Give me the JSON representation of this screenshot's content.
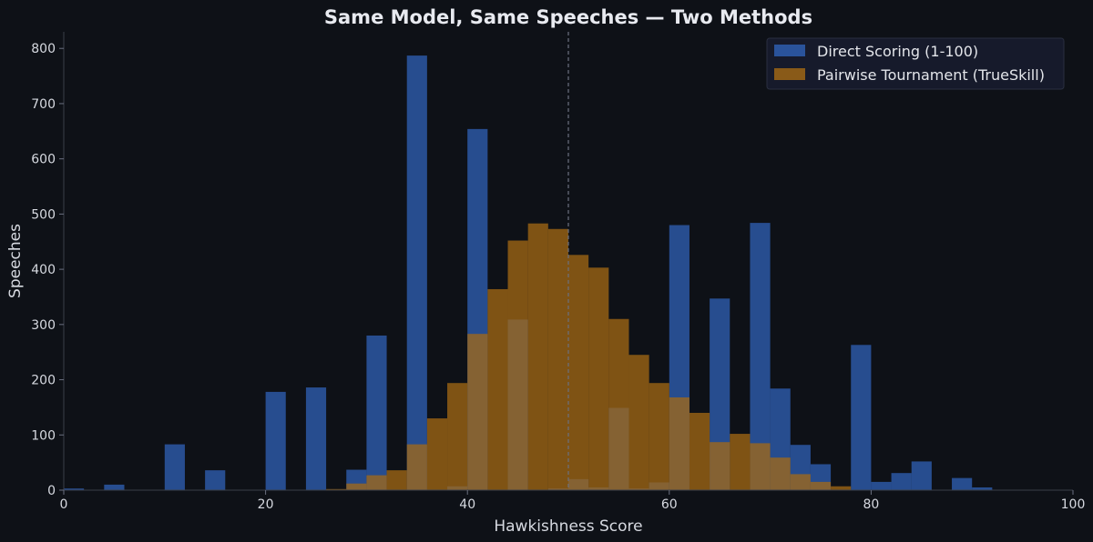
{
  "chart_data": {
    "type": "bar",
    "title": "Same Model, Same Speeches — Two Methods",
    "xlabel": "Hawkishness Score",
    "ylabel": "Speeches",
    "xlim": [
      0,
      100
    ],
    "ylim": [
      0,
      830
    ],
    "x_ticks": [
      0,
      20,
      40,
      60,
      80,
      100
    ],
    "y_ticks": [
      0,
      100,
      200,
      300,
      400,
      500,
      600,
      700,
      800
    ],
    "bin_width": 2,
    "reference_line_x": 50,
    "grid": false,
    "legend_position": "top-right",
    "series": [
      {
        "name": "Direct Scoring (1-100)",
        "color": "#3061b8",
        "bin_starts": [
          0,
          4,
          10,
          14,
          20,
          24,
          28,
          30,
          34,
          38,
          40,
          44,
          48,
          50,
          52,
          54,
          56,
          58,
          60,
          64,
          68,
          70,
          72,
          74,
          78,
          80,
          82,
          84,
          88,
          90
        ],
        "values": [
          3,
          10,
          83,
          36,
          178,
          186,
          37,
          280,
          787,
          7,
          654,
          309,
          3,
          20,
          5,
          149,
          3,
          14,
          480,
          347,
          484,
          184,
          82,
          47,
          263,
          15,
          31,
          52,
          22,
          5
        ]
      },
      {
        "name": "Pairwise Tournament (TrueSkill)",
        "color": "#a66a14",
        "bin_starts": [
          26,
          28,
          30,
          32,
          34,
          36,
          38,
          40,
          42,
          44,
          46,
          48,
          50,
          52,
          54,
          56,
          58,
          60,
          62,
          64,
          66,
          68,
          70,
          72,
          74,
          76
        ],
        "values": [
          2,
          12,
          27,
          36,
          83,
          130,
          194,
          283,
          364,
          452,
          483,
          473,
          426,
          403,
          310,
          245,
          194,
          168,
          140,
          87,
          102,
          85,
          59,
          29,
          15,
          7
        ]
      }
    ]
  }
}
